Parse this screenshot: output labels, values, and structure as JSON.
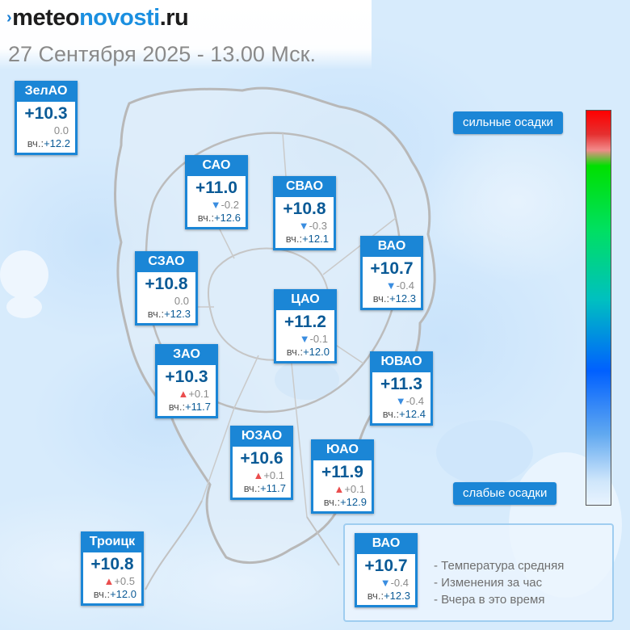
{
  "header": {
    "logo_arrow": "›",
    "logo_part1": "meteo",
    "logo_part2": "novosti",
    "logo_part3": ".ru",
    "subtitle": "27 Сентября 2025 - 13.00 Мск."
  },
  "districts": [
    {
      "name": "ЗелАО",
      "temp": "+10.3",
      "dir": "none",
      "change": "0.0",
      "yest_label": "вч.:",
      "yest": "+12.2"
    },
    {
      "name": "САО",
      "temp": "+11.0",
      "dir": "down",
      "change": "-0.2",
      "yest_label": "вч.:",
      "yest": "+12.6"
    },
    {
      "name": "СВАО",
      "temp": "+10.8",
      "dir": "down",
      "change": "-0.3",
      "yest_label": "вч.:",
      "yest": "+12.1"
    },
    {
      "name": "ВАО",
      "temp": "+10.7",
      "dir": "down",
      "change": "-0.4",
      "yest_label": "вч.:",
      "yest": "+12.3"
    },
    {
      "name": "СЗАО",
      "temp": "+10.8",
      "dir": "none",
      "change": "0.0",
      "yest_label": "вч.:",
      "yest": "+12.3"
    },
    {
      "name": "ЦАО",
      "temp": "+11.2",
      "dir": "down",
      "change": "-0.1",
      "yest_label": "вч.:",
      "yest": "+12.0"
    },
    {
      "name": "ЗАО",
      "temp": "+10.3",
      "dir": "up",
      "change": "+0.1",
      "yest_label": "вч.:",
      "yest": "+11.7"
    },
    {
      "name": "ЮВАО",
      "temp": "+11.3",
      "dir": "down",
      "change": "-0.4",
      "yest_label": "вч.:",
      "yest": "+12.4"
    },
    {
      "name": "ЮЗАО",
      "temp": "+10.6",
      "dir": "up",
      "change": "+0.1",
      "yest_label": "вч.:",
      "yest": "+11.7"
    },
    {
      "name": "ЮАО",
      "temp": "+11.9",
      "dir": "up",
      "change": "+0.1",
      "yest_label": "вч.:",
      "yest": "+12.9"
    },
    {
      "name": "Троицк",
      "temp": "+10.8",
      "dir": "up",
      "change": "+0.5",
      "yest_label": "вч.:",
      "yest": "+12.0"
    }
  ],
  "precip_scale": {
    "top_label": "сильные осадки",
    "bottom_label": "слабые осадки",
    "colors": [
      "#ff0000",
      "#f28a8a",
      "#00e000",
      "#00c0c0",
      "#0060ff",
      "#cfe6fb"
    ]
  },
  "legend": {
    "sample": {
      "name": "ВАО",
      "temp": "+10.7",
      "dir": "down",
      "change": "-0.4",
      "yest_label": "вч.:",
      "yest": "+12.3"
    },
    "line1": "- Температура средняя",
    "line2": "- Изменения за час",
    "line3": "- Вчера в это время"
  },
  "colors": {
    "accent": "#1b86d6",
    "temp_text": "#0a5a96",
    "up": "#ea4d4d",
    "down": "#3a8de0"
  }
}
